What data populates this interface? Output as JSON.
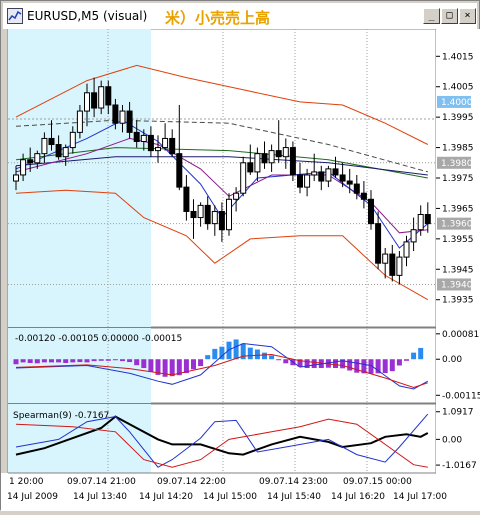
{
  "window": {
    "title": "EURUSD,M5 (visual)",
    "title_annotation": "米）小売売上高",
    "buttons": {
      "minimize": "_",
      "maximize": "□",
      "close": "×"
    }
  },
  "colors": {
    "chart_bg": "#ffffff",
    "highlight_bg": "#d8f4fc",
    "candle": "#000000",
    "bollinger": "#e0400c",
    "ma_dark_green": "#1e6a1e",
    "ma_navy": "#1a1a6e",
    "ma_purple": "#8a1a8a",
    "ma_blue": "#2233cc",
    "ma_dashed": "#4a4a4a",
    "hist_pos": "#2a8cf0",
    "hist_neg": "#9a30d0",
    "signal_red": "#d01818",
    "spearman_black": "#000000",
    "grid": "#a0a0a0",
    "price_tag": "#a8a8a8",
    "current_tag": "#80c0f0"
  },
  "chart_data": [
    {
      "type": "line",
      "subtype": "candlestick",
      "y_ticks": [
        "1.4015",
        "1.4005",
        "1.3995",
        "1.3985",
        "1.3975",
        "1.3965",
        "1.3955",
        "1.3945",
        "1.3935"
      ],
      "ylim": [
        1.3928,
        1.4022
      ],
      "price_tags": [
        {
          "value": 1.4,
          "label": "1.4000",
          "kind": "current"
        },
        {
          "value": 1.398,
          "label": "1.3980",
          "kind": "level"
        },
        {
          "value": 1.396,
          "label": "1.3960",
          "kind": "level"
        },
        {
          "value": 1.394,
          "label": "1.3940",
          "kind": "level"
        }
      ],
      "candles": [
        [
          1.3974,
          1.3979,
          1.3971,
          1.3976
        ],
        [
          1.3976,
          1.3983,
          1.3974,
          1.3981
        ],
        [
          1.3981,
          1.3985,
          1.3977,
          1.398
        ],
        [
          1.398,
          1.3984,
          1.3978,
          1.3983
        ],
        [
          1.3983,
          1.399,
          1.398,
          1.3988
        ],
        [
          1.3988,
          1.3994,
          1.3984,
          1.3986
        ],
        [
          1.3986,
          1.3989,
          1.3981,
          1.3982
        ],
        [
          1.3982,
          1.3986,
          1.3979,
          1.3985
        ],
        [
          1.3985,
          1.3992,
          1.3983,
          1.399
        ],
        [
          1.399,
          1.3999,
          1.3988,
          1.3997
        ],
        [
          1.3997,
          1.4006,
          1.3992,
          1.4003
        ],
        [
          1.4003,
          1.4008,
          1.3995,
          1.3998
        ],
        [
          1.3998,
          1.4007,
          1.3996,
          1.4005
        ],
        [
          1.4005,
          1.4007,
          1.3996,
          1.3999
        ],
        [
          1.3999,
          1.4001,
          1.3991,
          1.3993
        ],
        [
          1.3993,
          1.3999,
          1.399,
          1.3997
        ],
        [
          1.3997,
          1.4,
          1.3988,
          1.399
        ],
        [
          1.399,
          1.3994,
          1.3985,
          1.3987
        ],
        [
          1.3987,
          1.3991,
          1.3984,
          1.3989
        ],
        [
          1.3989,
          1.3992,
          1.3982,
          1.3984
        ],
        [
          1.3984,
          1.3989,
          1.398,
          1.3985
        ],
        [
          1.3985,
          1.3993,
          1.3984,
          1.3988
        ],
        [
          1.3988,
          1.3991,
          1.3982,
          1.3983
        ],
        [
          1.3983,
          1.3999,
          1.3971,
          1.3972
        ],
        [
          1.3972,
          1.3976,
          1.3961,
          1.3964
        ],
        [
          1.3964,
          1.3968,
          1.3955,
          1.3962
        ],
        [
          1.3962,
          1.3967,
          1.3959,
          1.3966
        ],
        [
          1.3966,
          1.3969,
          1.3958,
          1.396
        ],
        [
          1.396,
          1.3966,
          1.3956,
          1.3964
        ],
        [
          1.3964,
          1.3967,
          1.3954,
          1.3958
        ],
        [
          1.3958,
          1.397,
          1.3956,
          1.3968
        ],
        [
          1.3968,
          1.3972,
          1.3964,
          1.397
        ],
        [
          1.397,
          1.3982,
          1.3969,
          1.398
        ],
        [
          1.398,
          1.3986,
          1.3976,
          1.3977
        ],
        [
          1.3977,
          1.3985,
          1.3974,
          1.3983
        ],
        [
          1.3983,
          1.3987,
          1.3978,
          1.398
        ],
        [
          1.398,
          1.3986,
          1.3977,
          1.3984
        ],
        [
          1.3984,
          1.3994,
          1.398,
          1.3982
        ],
        [
          1.3982,
          1.3988,
          1.3978,
          1.3985
        ],
        [
          1.3985,
          1.3987,
          1.3974,
          1.3976
        ],
        [
          1.3976,
          1.398,
          1.397,
          1.3972
        ],
        [
          1.3972,
          1.3978,
          1.3969,
          1.3976
        ],
        [
          1.3976,
          1.3983,
          1.3974,
          1.3977
        ],
        [
          1.3977,
          1.3979,
          1.3971,
          1.3974
        ],
        [
          1.3974,
          1.3979,
          1.3972,
          1.3978
        ],
        [
          1.3978,
          1.3982,
          1.3975,
          1.3976
        ],
        [
          1.3976,
          1.398,
          1.3972,
          1.3974
        ],
        [
          1.3974,
          1.3978,
          1.397,
          1.3973
        ],
        [
          1.3973,
          1.3976,
          1.3968,
          1.397
        ],
        [
          1.397,
          1.3974,
          1.3965,
          1.3968
        ],
        [
          1.3968,
          1.3971,
          1.3958,
          1.396
        ],
        [
          1.396,
          1.3964,
          1.3945,
          1.3947
        ],
        [
          1.3947,
          1.3952,
          1.3942,
          1.395
        ],
        [
          1.395,
          1.3953,
          1.3941,
          1.3943
        ],
        [
          1.3943,
          1.3951,
          1.394,
          1.3949
        ],
        [
          1.3949,
          1.3956,
          1.3946,
          1.3954
        ],
        [
          1.3954,
          1.3962,
          1.3951,
          1.3958
        ],
        [
          1.3958,
          1.3966,
          1.3956,
          1.3963
        ],
        [
          1.3963,
          1.3967,
          1.3957,
          1.396
        ]
      ],
      "bollinger": {
        "upper": [
          [
            0,
            1.3995
          ],
          [
            10,
            1.4007
          ],
          [
            17,
            1.4012
          ],
          [
            24,
            1.4008
          ],
          [
            32,
            1.4004
          ],
          [
            40,
            1.4
          ],
          [
            46,
            1.3999
          ],
          [
            52,
            1.3993
          ],
          [
            58,
            1.3986
          ]
        ],
        "lower": [
          [
            0,
            1.397
          ],
          [
            7,
            1.3971
          ],
          [
            14,
            1.397
          ],
          [
            18,
            1.3962
          ],
          [
            24,
            1.3956
          ],
          [
            28,
            1.3947
          ],
          [
            33,
            1.3955
          ],
          [
            40,
            1.3956
          ],
          [
            46,
            1.3956
          ],
          [
            52,
            1.3943
          ],
          [
            58,
            1.3935
          ]
        ]
      },
      "ma_lines": [
        {
          "key": "dark_green",
          "points": [
            [
              0,
              1.3981
            ],
            [
              14,
              1.3985
            ],
            [
              30,
              1.3984
            ],
            [
              44,
              1.3981
            ],
            [
              58,
              1.3975
            ]
          ]
        },
        {
          "key": "navy",
          "points": [
            [
              0,
              1.3979
            ],
            [
              14,
              1.3982
            ],
            [
              30,
              1.3982
            ],
            [
              44,
              1.398
            ],
            [
              58,
              1.3976
            ]
          ]
        },
        {
          "key": "dashed",
          "points": [
            [
              0,
              1.3992
            ],
            [
              14,
              1.3994
            ],
            [
              30,
              1.3993
            ],
            [
              44,
              1.3986
            ],
            [
              58,
              1.3977
            ]
          ]
        },
        {
          "key": "purple",
          "points": [
            [
              0,
              1.3977
            ],
            [
              10,
              1.3983
            ],
            [
              16,
              1.3988
            ],
            [
              20,
              1.3986
            ],
            [
              26,
              1.3978
            ],
            [
              30,
              1.3969
            ],
            [
              36,
              1.3976
            ],
            [
              44,
              1.3976
            ],
            [
              50,
              1.3967
            ],
            [
              54,
              1.3957
            ],
            [
              58,
              1.3958
            ]
          ]
        },
        {
          "key": "blue",
          "points": [
            [
              0,
              1.3978
            ],
            [
              10,
              1.3988
            ],
            [
              15,
              1.3994
            ],
            [
              20,
              1.3987
            ],
            [
              26,
              1.3973
            ],
            [
              29,
              1.3962
            ],
            [
              34,
              1.3975
            ],
            [
              44,
              1.3977
            ],
            [
              50,
              1.3966
            ],
            [
              54,
              1.3952
            ],
            [
              58,
              1.396
            ]
          ]
        }
      ]
    },
    {
      "type": "bar",
      "label": "-0.00120 -0.00105 0.00000 -0.00015",
      "y_ticks": [
        "0.00081",
        "0.00",
        "-0.00115"
      ],
      "ylim": [
        -0.0013,
        0.0009
      ],
      "values": [
        -0.00016,
        -0.0001,
        -0.00012,
        -0.00013,
        -0.0001,
        -0.0001,
        -0.0001,
        -0.00012,
        -0.0001,
        -9e-05,
        -0.0001,
        -6e-05,
        -5e-05,
        -5e-05,
        -2e-05,
        -6e-05,
        -9e-05,
        -0.00019,
        -0.00028,
        -0.0004,
        -0.0005,
        -0.00056,
        -0.00054,
        -0.00051,
        -0.00044,
        -0.00032,
        -0.00022,
        0.00013,
        0.00033,
        0.0004,
        0.00056,
        0.00063,
        0.0005,
        0.00037,
        0.00031,
        0.00021,
        0.00012,
        -3e-05,
        -0.00013,
        -0.00019,
        -0.00024,
        -0.00028,
        -0.00028,
        -0.00028,
        -0.00027,
        -0.00028,
        -0.00029,
        -0.00036,
        -0.00043,
        -0.00045,
        -0.00046,
        -0.00045,
        -0.00044,
        -0.00038,
        -0.0002,
        -5e-05,
        0.00021,
        0.00036
      ],
      "blue_line": [
        [
          0,
          -0.00028
        ],
        [
          10,
          -0.0002
        ],
        [
          16,
          -0.00045
        ],
        [
          20,
          -0.0007
        ],
        [
          22,
          -0.0008
        ],
        [
          26,
          -0.0005
        ],
        [
          30,
          0.0003
        ],
        [
          32,
          0.0005
        ],
        [
          36,
          0.0004
        ],
        [
          40,
          -0.00025
        ],
        [
          46,
          -5e-05
        ],
        [
          50,
          -0.0002
        ],
        [
          54,
          -0.00085
        ],
        [
          56,
          -0.00095
        ],
        [
          58,
          -0.0007
        ]
      ],
      "red_line": [
        [
          0,
          -0.00026
        ],
        [
          10,
          -0.00018
        ],
        [
          16,
          -0.0003
        ],
        [
          22,
          -0.0005
        ],
        [
          28,
          -0.0002
        ],
        [
          32,
          0.0001
        ],
        [
          36,
          0.00015
        ],
        [
          40,
          -5e-05
        ],
        [
          46,
          -0.0002
        ],
        [
          52,
          -0.0006
        ],
        [
          56,
          -0.0009
        ],
        [
          58,
          -0.00075
        ]
      ]
    },
    {
      "type": "line",
      "label": "Spearman(9) -0.7167",
      "y_ticks": [
        "1.0917",
        "0.00",
        "-1.0167"
      ],
      "ylim": [
        -1.25,
        1.2
      ],
      "series": [
        {
          "key": "black",
          "points": [
            [
              0,
              -0.6
            ],
            [
              4,
              -0.35
            ],
            [
              8,
              0.05
            ],
            [
              12,
              0.45
            ],
            [
              14,
              0.9
            ],
            [
              16,
              0.6
            ],
            [
              20,
              0.0
            ],
            [
              22,
              -0.2
            ],
            [
              26,
              -0.2
            ],
            [
              30,
              -0.55
            ],
            [
              32,
              -0.6
            ],
            [
              36,
              -0.2
            ],
            [
              40,
              0.1
            ],
            [
              44,
              -0.1
            ],
            [
              46,
              -0.3
            ],
            [
              50,
              -0.15
            ],
            [
              52,
              0.1
            ],
            [
              55,
              0.2
            ],
            [
              57,
              0.1
            ],
            [
              58,
              0.25
            ]
          ]
        },
        {
          "key": "blue",
          "points": [
            [
              0,
              -0.3
            ],
            [
              6,
              0.0
            ],
            [
              10,
              0.7
            ],
            [
              14,
              0.9
            ],
            [
              16,
              0.3
            ],
            [
              20,
              -1.1
            ],
            [
              22,
              -0.8
            ],
            [
              26,
              0.05
            ],
            [
              28,
              0.7
            ],
            [
              31,
              0.75
            ],
            [
              34,
              -0.5
            ],
            [
              38,
              -0.3
            ],
            [
              44,
              0.0
            ],
            [
              48,
              -0.6
            ],
            [
              52,
              -0.9
            ],
            [
              54,
              -0.3
            ],
            [
              58,
              1.0
            ]
          ]
        },
        {
          "key": "red",
          "points": [
            [
              0,
              0.6
            ],
            [
              8,
              0.5
            ],
            [
              14,
              0.3
            ],
            [
              18,
              -0.8
            ],
            [
              22,
              -1.1
            ],
            [
              26,
              -0.8
            ],
            [
              30,
              0.0
            ],
            [
              36,
              0.3
            ],
            [
              40,
              0.5
            ],
            [
              44,
              0.8
            ],
            [
              48,
              0.6
            ],
            [
              52,
              -0.2
            ],
            [
              56,
              -1.0
            ],
            [
              58,
              -1.1
            ]
          ]
        }
      ]
    }
  ],
  "x_axis": {
    "top_row": [
      "1 20:00",
      "09.07.14 21:00",
      "09.07.14 22:00",
      "09.07.14 23:00",
      "09.07.15 00:00"
    ],
    "bottom_row": [
      "14 Jul 2009",
      "14 Jul 13:40",
      "14 Jul 14:20",
      "14 Jul 15:00",
      "14 Jul 15:40",
      "14 Jul 16:20",
      "14 Jul 17:00"
    ]
  }
}
